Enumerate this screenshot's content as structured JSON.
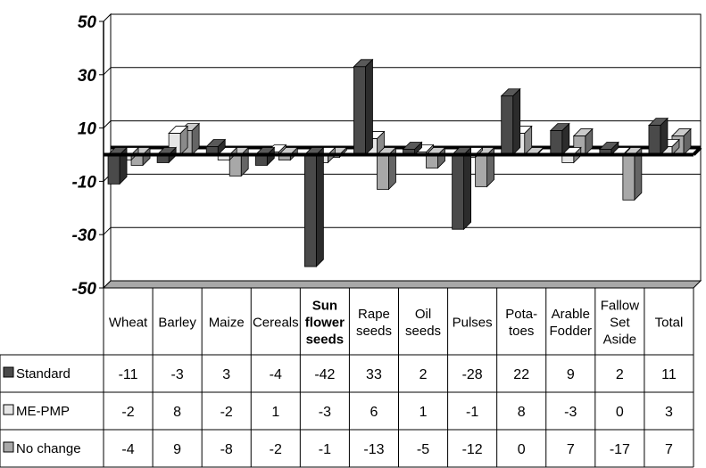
{
  "chart_data": {
    "type": "bar",
    "ylim": [
      -50,
      50
    ],
    "yticks": [
      "50",
      "30",
      "10",
      "-10",
      "-30",
      "-50"
    ],
    "ytick_values": [
      50,
      30,
      10,
      -10,
      -30,
      -50
    ],
    "grid": true,
    "legend_placement": "data-table-left",
    "categories": [
      [
        "Wheat"
      ],
      [
        "Barley"
      ],
      [
        "Maize"
      ],
      [
        "Cereals"
      ],
      [
        "Sun",
        "flower",
        "seeds"
      ],
      [
        "Rape",
        "seeds"
      ],
      [
        "Oil",
        "seeds"
      ],
      [
        "Pulses"
      ],
      [
        "Pota-",
        "toes"
      ],
      [
        "Arable",
        "Fodder"
      ],
      [
        "Fallow",
        "Set",
        "Aside"
      ],
      [
        "Total"
      ]
    ],
    "bold_category_index": 4,
    "series": [
      {
        "name": "Standard",
        "color": "#4a4a4a",
        "values": [
          -11,
          -3,
          3,
          -4,
          -42,
          33,
          2,
          -28,
          22,
          9,
          2,
          11
        ]
      },
      {
        "name": "ME-PMP",
        "color": "#e6e6e6",
        "values": [
          -2,
          8,
          -2,
          1,
          -3,
          6,
          1,
          -1,
          8,
          -3,
          0,
          3
        ]
      },
      {
        "name": "No change",
        "color": "#a8a8a8",
        "values": [
          -4,
          9,
          -8,
          -2,
          -1,
          -13,
          -5,
          -12,
          0,
          7,
          -17,
          7
        ]
      }
    ]
  }
}
